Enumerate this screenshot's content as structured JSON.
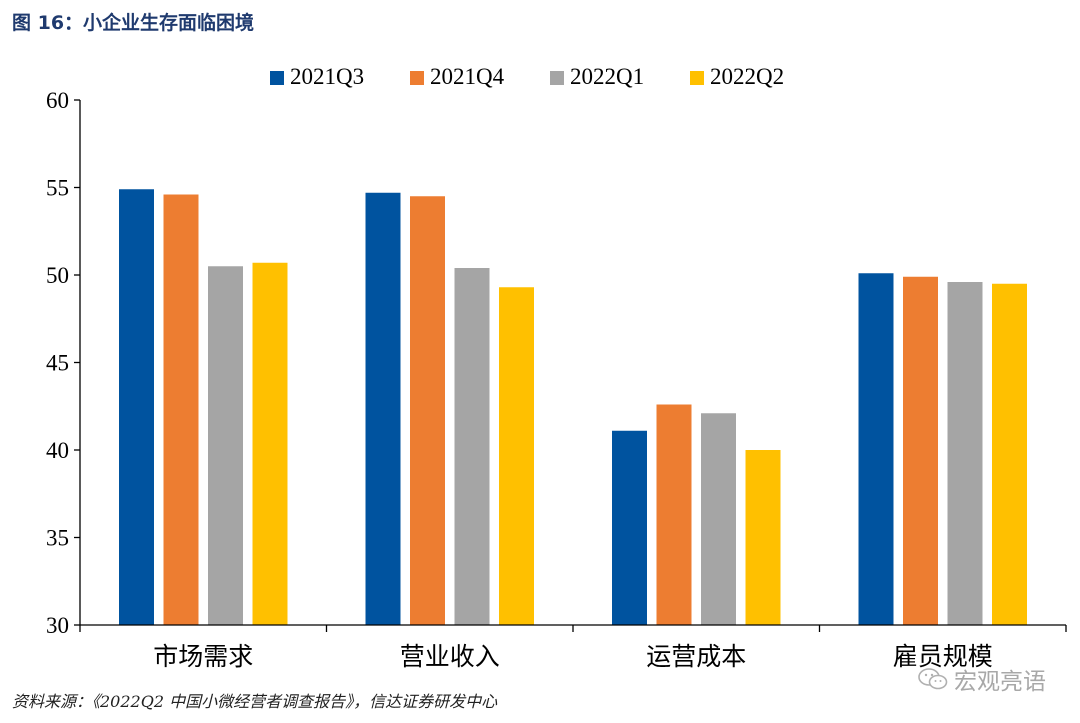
{
  "figure": {
    "title": "图 16：小企业生存面临困境",
    "source": "资料来源：《2022Q2 中国小微经营者调查报告》，信达证券研发中心",
    "watermark": "宏观亮语"
  },
  "chart_data": {
    "type": "bar",
    "title": "小企业生存面临困境",
    "xlabel": "",
    "ylabel": "",
    "ylim": [
      30,
      60
    ],
    "yticks": [
      30,
      35,
      40,
      45,
      50,
      55,
      60
    ],
    "categories": [
      "市场需求",
      "营业收入",
      "运营成本",
      "雇员规模"
    ],
    "series": [
      {
        "name": "2021Q3",
        "color": "#00539f",
        "values": [
          54.9,
          54.7,
          41.1,
          50.1
        ]
      },
      {
        "name": "2021Q4",
        "color": "#ed7d31",
        "values": [
          54.6,
          54.5,
          42.6,
          49.9
        ]
      },
      {
        "name": "2022Q1",
        "color": "#a5a5a5",
        "values": [
          50.5,
          50.4,
          42.1,
          49.6
        ]
      },
      {
        "name": "2022Q2",
        "color": "#ffc000",
        "values": [
          50.7,
          49.3,
          40.0,
          49.5
        ]
      }
    ],
    "legend_position": "top-center",
    "grid": false
  }
}
